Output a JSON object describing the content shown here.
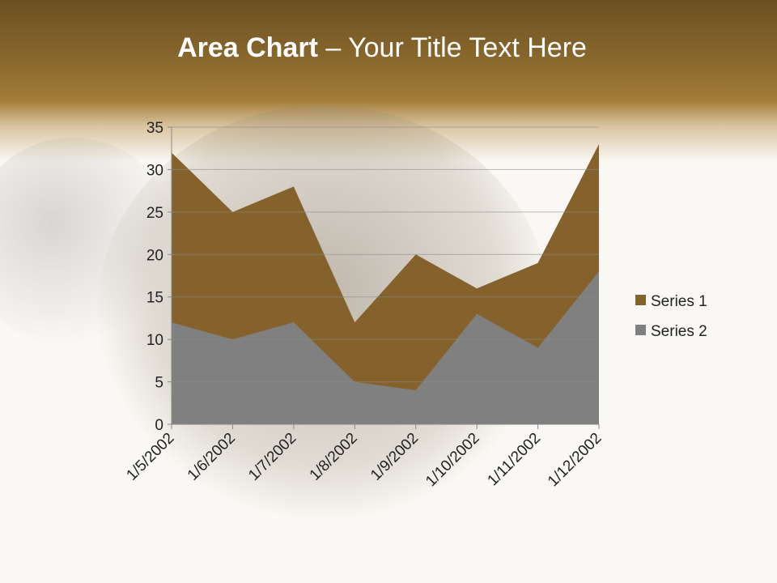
{
  "title": {
    "bold": "Area Chart",
    "rest": " – Your Title Text Here"
  },
  "chart_data": {
    "type": "area",
    "title": "",
    "xlabel": "",
    "ylabel": "",
    "categories": [
      "1/5/2002",
      "1/6/2002",
      "1/7/2002",
      "1/8/2002",
      "1/9/2002",
      "1/10/2002",
      "1/11/2002",
      "1/12/2002"
    ],
    "ylim": [
      0,
      35
    ],
    "yticks": [
      0,
      5,
      10,
      15,
      20,
      25,
      30,
      35
    ],
    "grid": true,
    "legend": "right",
    "series": [
      {
        "name": "Series 1",
        "values": [
          32,
          25,
          28,
          12,
          20,
          16,
          19,
          33
        ],
        "color": "#85622c"
      },
      {
        "name": "Series 2",
        "values": [
          12,
          10,
          12,
          5,
          4,
          13,
          9,
          18
        ],
        "color": "#808080"
      }
    ]
  }
}
